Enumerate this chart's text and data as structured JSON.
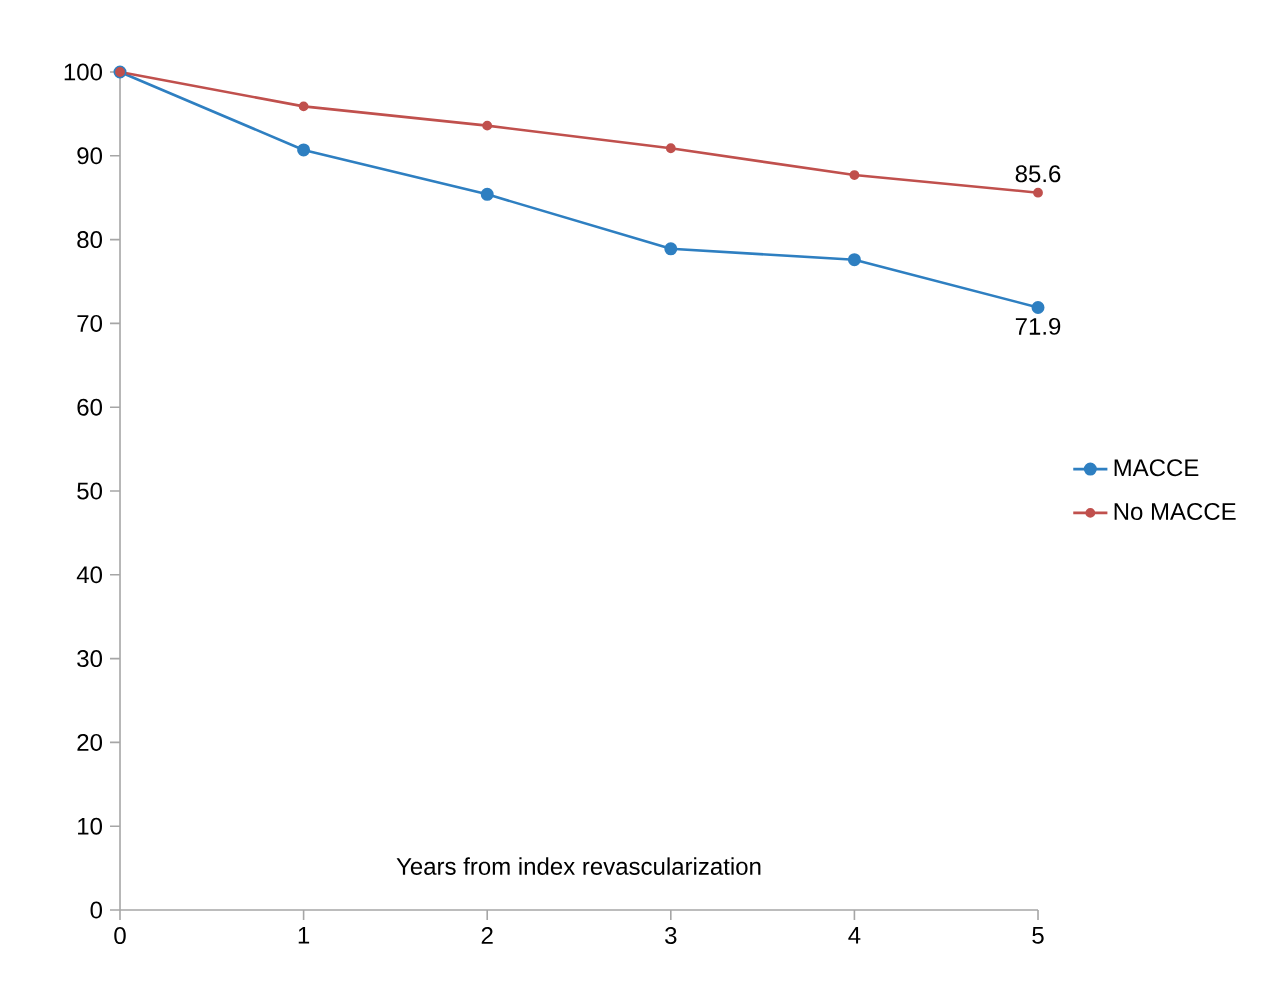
{
  "chart_data": {
    "type": "line",
    "xlabel": "Years from index revascularization",
    "x": [
      0,
      1,
      2,
      3,
      4,
      5
    ],
    "series": [
      {
        "name": "MACCE",
        "color": "#2e7fc1",
        "values": [
          100,
          90.7,
          85.4,
          78.9,
          77.6,
          71.9
        ]
      },
      {
        "name": "No MACCE",
        "color": "#c0504d",
        "values": [
          100,
          95.9,
          93.6,
          90.9,
          87.7,
          85.6
        ]
      }
    ],
    "annotations": [
      {
        "text": "85.6",
        "x": 5,
        "y": 85.6
      },
      {
        "text": "71.9",
        "x": 5,
        "y": 71.9
      }
    ],
    "xlim": [
      0,
      5
    ],
    "ylim": [
      0,
      100
    ],
    "xticks": [
      0,
      1,
      2,
      3,
      4,
      5
    ],
    "yticks": [
      0,
      10,
      20,
      30,
      40,
      50,
      60,
      70,
      80,
      90,
      100
    ],
    "grid": false,
    "legend": "right",
    "marker": "circle",
    "line_style": "solid"
  }
}
